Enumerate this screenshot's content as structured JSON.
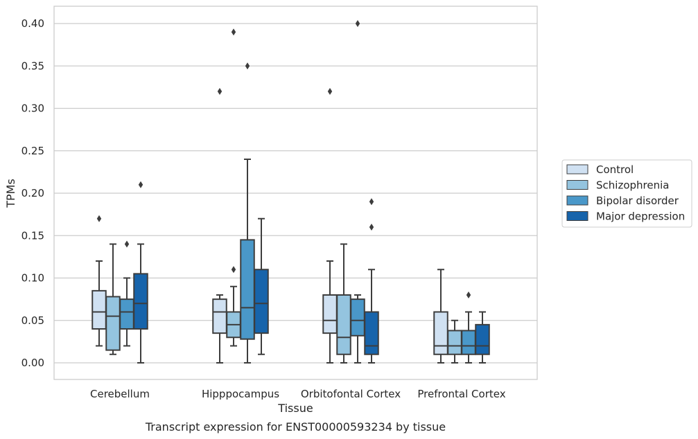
{
  "chart_data": {
    "type": "box",
    "caption": "Transcript expression for ENST00000593234 by tissue",
    "xlabel": "Tissue",
    "ylabel": "TPMs",
    "ylim": [
      -0.02,
      0.42
    ],
    "yticks": [
      "0.00",
      "0.05",
      "0.10",
      "0.15",
      "0.20",
      "0.25",
      "0.30",
      "0.35",
      "0.40"
    ],
    "grid": "horizontal",
    "legend_position": "right",
    "categories": [
      "Cerebellum",
      "Hipppocampus",
      "Orbitofontal Cortex",
      "Prefrontal Cortex"
    ],
    "series": [
      {
        "name": "Control",
        "color": "#d0e1f2",
        "boxes": [
          {
            "whislo": 0.02,
            "q1": 0.04,
            "med": 0.06,
            "q3": 0.085,
            "whishi": 0.12,
            "fliers": [
              0.17
            ]
          },
          {
            "whislo": 0.0,
            "q1": 0.035,
            "med": 0.06,
            "q3": 0.075,
            "whishi": 0.08,
            "fliers": [
              0.32
            ]
          },
          {
            "whislo": 0.0,
            "q1": 0.035,
            "med": 0.05,
            "q3": 0.08,
            "whishi": 0.12,
            "fliers": [
              0.32
            ]
          },
          {
            "whislo": 0.0,
            "q1": 0.01,
            "med": 0.02,
            "q3": 0.06,
            "whishi": 0.11,
            "fliers": []
          }
        ]
      },
      {
        "name": "Schizophrenia",
        "color": "#94c4df",
        "boxes": [
          {
            "whislo": 0.01,
            "q1": 0.015,
            "med": 0.055,
            "q3": 0.078,
            "whishi": 0.14,
            "fliers": []
          },
          {
            "whislo": 0.02,
            "q1": 0.03,
            "med": 0.045,
            "q3": 0.06,
            "whishi": 0.09,
            "fliers": [
              0.11,
              0.39
            ]
          },
          {
            "whislo": 0.0,
            "q1": 0.01,
            "med": 0.03,
            "q3": 0.08,
            "whishi": 0.14,
            "fliers": []
          },
          {
            "whislo": 0.0,
            "q1": 0.01,
            "med": 0.02,
            "q3": 0.038,
            "whishi": 0.05,
            "fliers": []
          }
        ]
      },
      {
        "name": "Bipolar disorder",
        "color": "#4a98c9",
        "boxes": [
          {
            "whislo": 0.02,
            "q1": 0.04,
            "med": 0.06,
            "q3": 0.075,
            "whishi": 0.1,
            "fliers": [
              0.14
            ]
          },
          {
            "whislo": 0.0,
            "q1": 0.028,
            "med": 0.065,
            "q3": 0.145,
            "whishi": 0.24,
            "fliers": [
              0.35
            ]
          },
          {
            "whislo": 0.0,
            "q1": 0.032,
            "med": 0.05,
            "q3": 0.075,
            "whishi": 0.08,
            "fliers": [
              0.4
            ]
          },
          {
            "whislo": 0.0,
            "q1": 0.01,
            "med": 0.02,
            "q3": 0.038,
            "whishi": 0.06,
            "fliers": [
              0.08
            ]
          }
        ]
      },
      {
        "name": "Major depression",
        "color": "#1764ab",
        "boxes": [
          {
            "whislo": 0.0,
            "q1": 0.04,
            "med": 0.07,
            "q3": 0.105,
            "whishi": 0.14,
            "fliers": [
              0.21
            ]
          },
          {
            "whislo": 0.01,
            "q1": 0.035,
            "med": 0.07,
            "q3": 0.11,
            "whishi": 0.17,
            "fliers": []
          },
          {
            "whislo": 0.0,
            "q1": 0.01,
            "med": 0.02,
            "q3": 0.06,
            "whishi": 0.11,
            "fliers": [
              0.16,
              0.19
            ]
          },
          {
            "whislo": 0.0,
            "q1": 0.01,
            "med": 0.02,
            "q3": 0.045,
            "whishi": 0.06,
            "fliers": []
          }
        ]
      }
    ]
  }
}
